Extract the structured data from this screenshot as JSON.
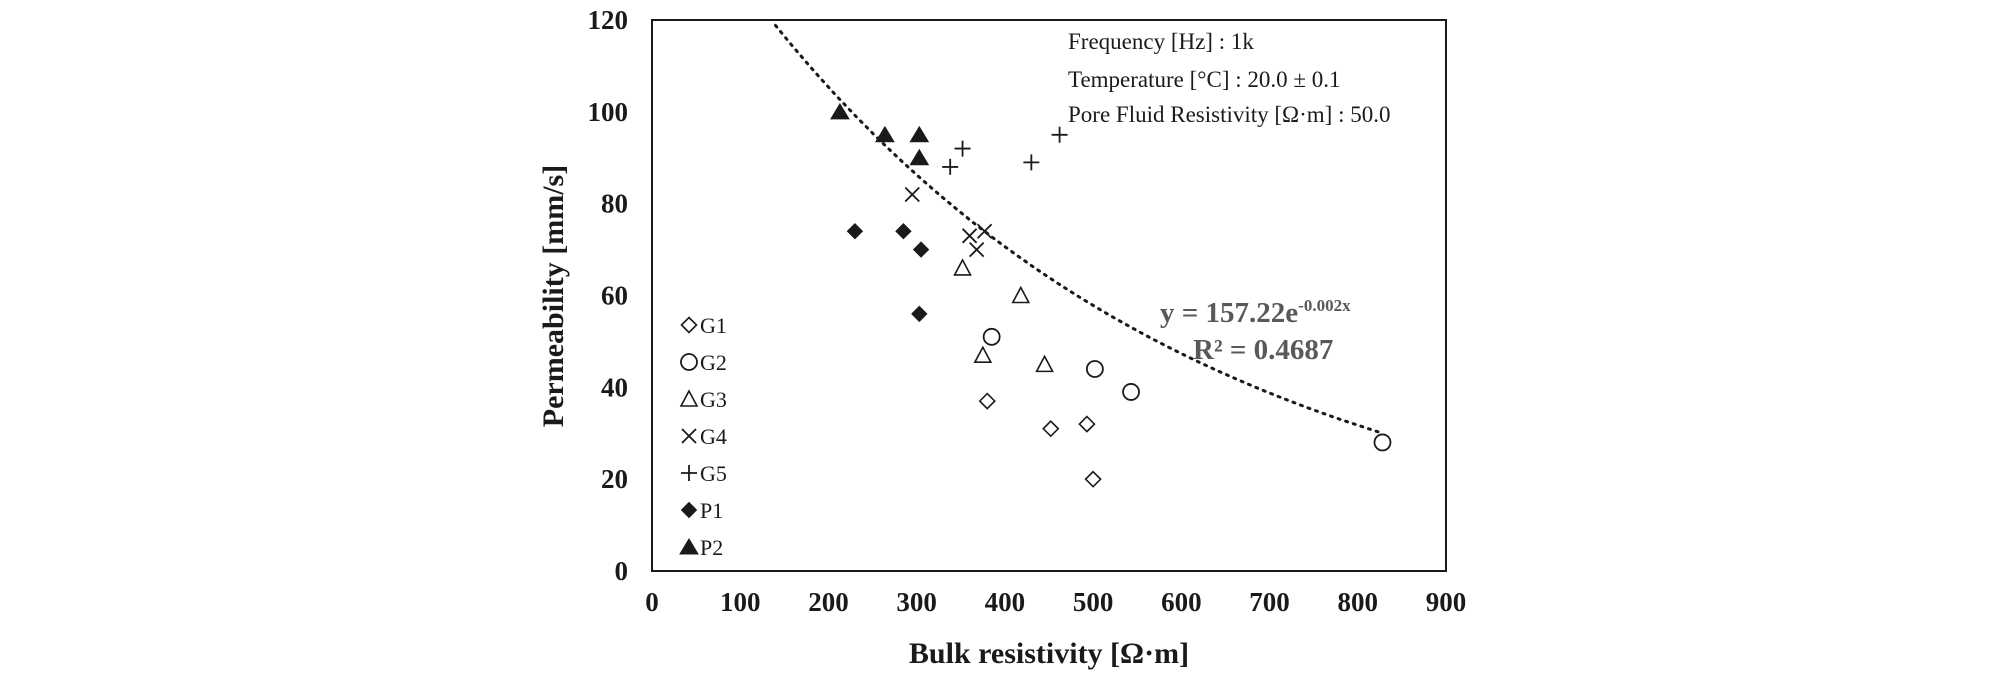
{
  "chart_data": {
    "type": "scatter",
    "xlabel": "Bulk resistivity  [Ω·m]",
    "ylabel": "Permeability [mm/s]",
    "xlim": [
      0,
      900
    ],
    "ylim": [
      0,
      120
    ],
    "x_ticks": [
      "0",
      "100",
      "200",
      "300",
      "400",
      "500",
      "600",
      "700",
      "800",
      "900"
    ],
    "y_ticks": [
      "0",
      "20",
      "40",
      "60",
      "80",
      "100",
      "120"
    ],
    "grid": false,
    "legend_position": "left",
    "annotations": {
      "frequency": "Frequency [Hz] : 1k",
      "temperature": "Temperature [°C] : 20.0  ± 0.1",
      "pore_fluid": "Pore Fluid Resistivity  [Ω·m] : 50.0"
    },
    "trendline": {
      "type": "exponential",
      "style": "dotted",
      "a": 157.22,
      "b": -0.002,
      "x_range": [
        140,
        825
      ],
      "equation_base": "y = 157.22e",
      "equation_exp": "-0.002x",
      "r2_label": "R² = 0.4687"
    },
    "series": [
      {
        "name": "G1",
        "marker": "diamond-open",
        "x": [
          380,
          452,
          493,
          500
        ],
        "y": [
          37,
          31,
          32,
          20
        ]
      },
      {
        "name": "G2",
        "marker": "circle-open",
        "x": [
          385,
          502,
          543,
          828
        ],
        "y": [
          51,
          44,
          39,
          28
        ]
      },
      {
        "name": "G3",
        "marker": "triangle-open",
        "x": [
          352,
          375,
          418,
          445
        ],
        "y": [
          66,
          47,
          60,
          45
        ]
      },
      {
        "name": "G4",
        "marker": "x",
        "x": [
          295,
          360,
          368,
          377
        ],
        "y": [
          82,
          73,
          70,
          74
        ]
      },
      {
        "name": "G5",
        "marker": "plus",
        "x": [
          338,
          352,
          430,
          462
        ],
        "y": [
          88,
          92,
          89,
          95
        ]
      },
      {
        "name": "P1",
        "marker": "diamond-filled",
        "x": [
          230,
          285,
          305,
          303
        ],
        "y": [
          74,
          74,
          70,
          56
        ]
      },
      {
        "name": "P2",
        "marker": "triangle-filled",
        "x": [
          213,
          264,
          303,
          303
        ],
        "y": [
          100,
          95,
          95,
          90
        ]
      }
    ]
  }
}
